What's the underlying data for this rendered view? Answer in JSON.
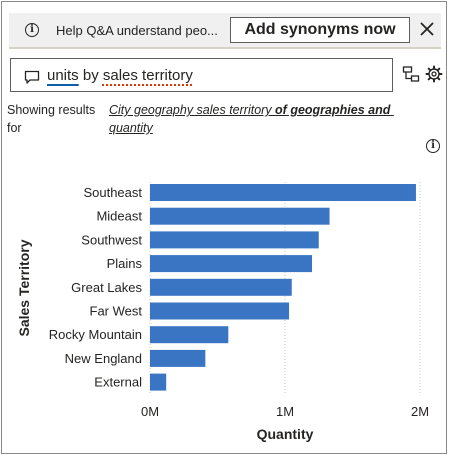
{
  "banner": {
    "icon": "info-icon",
    "text": "Help Q&A understand peo...",
    "button_label": "Add synonyms now",
    "close_icon": "close-icon"
  },
  "qa": {
    "icon": "chat-bubble-icon",
    "word_1": "units",
    "word_2": " by ",
    "word_3": "sales territory",
    "side_icons": [
      "hierarchy-icon",
      "gear-icon"
    ]
  },
  "results": {
    "showing_label": "Showing results for",
    "link_part_1": "City geography sales territory ",
    "link_part_2": "of geographies and",
    "link_part_3": " quantity"
  },
  "chart_data": {
    "type": "bar",
    "orientation": "horizontal",
    "categories": [
      "Southeast",
      "Mideast",
      "Southwest",
      "Plains",
      "Great Lakes",
      "Far West",
      "Rocky Mountain",
      "New England",
      "External"
    ],
    "values": [
      1970000,
      1330000,
      1250000,
      1200000,
      1050000,
      1030000,
      580000,
      410000,
      120000
    ],
    "xlabel": "Quantity",
    "ylabel": "Sales Territory",
    "xlim": [
      0,
      2000000
    ],
    "xticks": [
      "0M",
      "1M",
      "2M"
    ],
    "xtick_values": [
      0,
      1000000,
      2000000
    ],
    "bar_color": "#3a75c4",
    "grid": true
  },
  "colors": {
    "accent": "#3a75c4",
    "link_underline": "#0e5ea8",
    "spellcheck": "#d83b01"
  }
}
